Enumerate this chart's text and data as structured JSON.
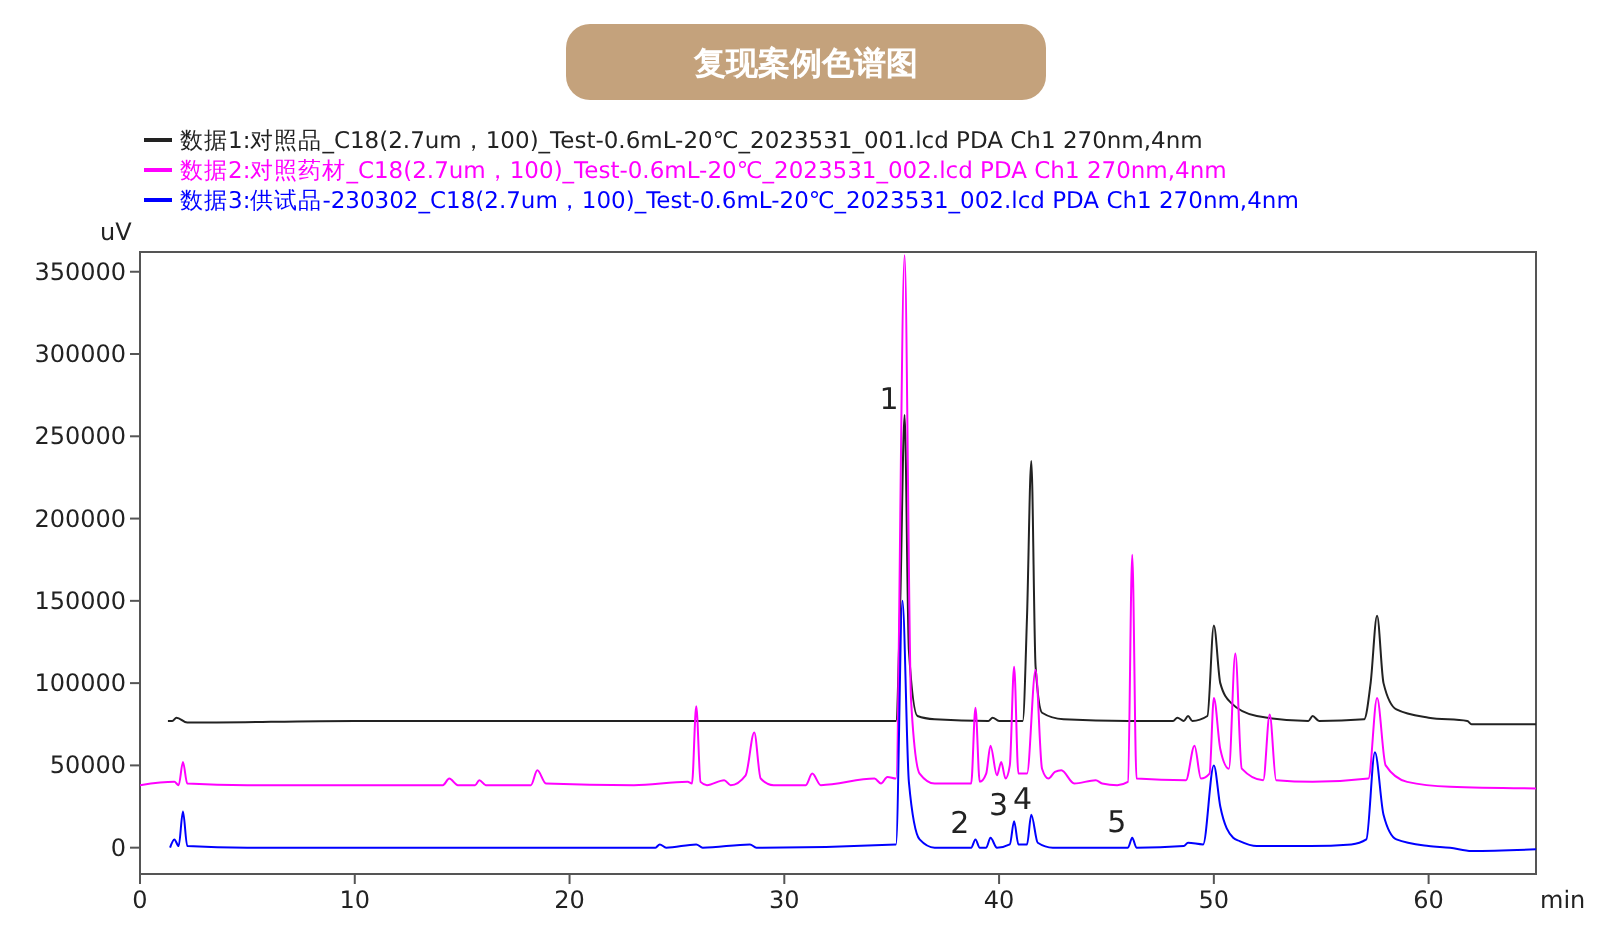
{
  "chart_data": {
    "type": "line",
    "title": "复现案例色谱图",
    "xlabel": "min",
    "ylabel": "uV",
    "xlim": [
      0,
      65
    ],
    "xticks": [
      0,
      10,
      20,
      30,
      40,
      50,
      60
    ],
    "ylim": [
      -16000,
      362000
    ],
    "yticks": [
      0,
      50000,
      100000,
      150000,
      200000,
      250000,
      300000,
      350000
    ],
    "legend": "top left",
    "grid": false,
    "line_style": "solid",
    "annotations": [
      {
        "text": "1",
        "x": 35.6,
        "y": 263000
      },
      {
        "text": "2",
        "x": 38.9,
        "y": 5000
      },
      {
        "text": "3",
        "x": 40.7,
        "y": 16000
      },
      {
        "text": "4",
        "x": 41.5,
        "y": 20000
      },
      {
        "text": "5",
        "x": 46.2,
        "y": 6000
      }
    ],
    "series": [
      {
        "name": "数据1:对照品_C18(2.7um，100)_Test-0.6mL-20℃_2023531_001.lcd PDA Ch1 270nm,4nm",
        "color": "#222222",
        "x": [
          1.3,
          1.5,
          1.7,
          2.2,
          10,
          20,
          30,
          35.2,
          35.4,
          35.6,
          35.8,
          36.2,
          37,
          39.5,
          39.7,
          40,
          41.1,
          41.3,
          41.5,
          41.7,
          42,
          43,
          46,
          48.1,
          48.3,
          48.6,
          48.8,
          49,
          49.7,
          50,
          50.3,
          50.8,
          52,
          54.4,
          54.6,
          54.9,
          57,
          57.3,
          57.6,
          57.9,
          58.5,
          60,
          61.8,
          62,
          65
        ],
        "values": [
          77000,
          77000,
          79000,
          76000,
          77000,
          77000,
          77000,
          77000,
          150000,
          263000,
          120000,
          80000,
          78000,
          77000,
          79000,
          77000,
          77000,
          140000,
          235000,
          110000,
          82000,
          78000,
          77000,
          77000,
          79000,
          77000,
          80000,
          77000,
          80000,
          135000,
          100000,
          88000,
          80000,
          77000,
          80000,
          77000,
          78000,
          100000,
          141000,
          100000,
          84000,
          79000,
          77000,
          75000,
          75000
        ]
      },
      {
        "name": "数据2:对照药材_C18(2.7um，100)_Test-0.6mL-20℃_2023531_002.lcd PDA Ch1 270nm,4nm",
        "color": "#ff00ff",
        "x": [
          0,
          1.6,
          1.8,
          2.0,
          2.2,
          5,
          14.1,
          14.4,
          14.8,
          15.6,
          15.8,
          16.1,
          18.2,
          18.5,
          18.9,
          23,
          25.5,
          25.7,
          25.9,
          26.1,
          26.4,
          27.2,
          27.5,
          28.2,
          28.6,
          28.9,
          29.5,
          31,
          31.3,
          31.7,
          34.2,
          34.5,
          34.8,
          35.2,
          35.6,
          35.9,
          36.3,
          37,
          38.7,
          38.9,
          39.1,
          39.4,
          39.6,
          39.9,
          40.1,
          40.3,
          40.5,
          40.7,
          40.9,
          41.3,
          41.7,
          42.0,
          42.3,
          42.6,
          42.9,
          43.5,
          44.5,
          44.8,
          45.5,
          46.0,
          46.2,
          46.4,
          48.7,
          49.1,
          49.4,
          49.8,
          50.0,
          50.3,
          50.7,
          51.0,
          51.3,
          52.3,
          52.6,
          52.9,
          54.6,
          57.2,
          57.6,
          58.0,
          59,
          61,
          65
        ],
        "values": [
          38000,
          40000,
          38000,
          52000,
          39000,
          38000,
          38000,
          42000,
          38000,
          38000,
          41000,
          38000,
          38000,
          47000,
          39000,
          38000,
          40000,
          39000,
          86000,
          40000,
          38000,
          41000,
          38000,
          44000,
          70000,
          42000,
          38000,
          38000,
          45000,
          38000,
          42000,
          39000,
          43000,
          42000,
          360000,
          90000,
          45000,
          39000,
          39000,
          85000,
          40000,
          45000,
          62000,
          44000,
          52000,
          42000,
          50000,
          110000,
          45000,
          45000,
          108000,
          48000,
          42000,
          46000,
          47000,
          39000,
          41000,
          39000,
          38000,
          40000,
          178000,
          42000,
          41000,
          62000,
          42000,
          45000,
          91000,
          60000,
          48000,
          118000,
          48000,
          41000,
          81000,
          41000,
          40000,
          42000,
          91000,
          50000,
          40000,
          37000,
          36000
        ]
      },
      {
        "name": "数据3:供试品-230302_C18(2.7um，100)_Test-0.6mL-20℃_2023531_002.lcd PDA Ch1 270nm,4nm",
        "color": "#0000ff",
        "x": [
          1.4,
          1.6,
          1.8,
          2.0,
          2.2,
          5,
          24,
          24.2,
          24.5,
          25.9,
          26.2,
          28.4,
          28.7,
          35.2,
          35.5,
          35.8,
          36.3,
          37,
          38.7,
          38.9,
          39.1,
          39.4,
          39.6,
          39.9,
          40.5,
          40.7,
          40.9,
          41.3,
          41.5,
          41.8,
          42.5,
          46.0,
          46.2,
          46.4,
          48.6,
          48.8,
          49.5,
          50.0,
          50.3,
          50.9,
          51.2,
          52,
          54.5,
          56.4,
          57.1,
          57.5,
          57.9,
          58.5,
          60,
          61,
          62,
          65
        ],
        "values": [
          0,
          5000,
          1000,
          22000,
          1000,
          0,
          0,
          2000,
          0,
          2000,
          0,
          2000,
          0,
          2000,
          150000,
          40000,
          5000,
          0,
          0,
          5000,
          0,
          0,
          6000,
          0,
          2000,
          16000,
          2000,
          2000,
          20000,
          3000,
          0,
          0,
          6000,
          0,
          1000,
          3000,
          2000,
          50000,
          25000,
          6000,
          4000,
          1000,
          1000,
          2000,
          5000,
          58000,
          20000,
          5000,
          1000,
          0,
          -2000,
          -1000
        ]
      }
    ]
  }
}
